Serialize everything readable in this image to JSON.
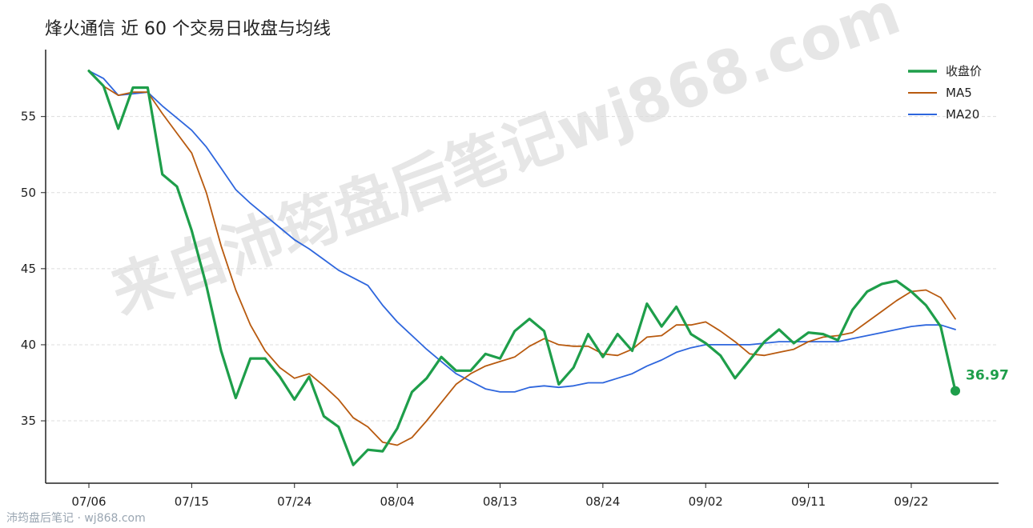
{
  "watermark_text": "来自沛筠盘后笔记wj868.com",
  "footer_text": "沛筠盘后笔记 · wj868.com",
  "end_value_label": "36.97",
  "colors": {
    "close": "#1e9e4a",
    "ma5": "#b85a0f",
    "ma20": "#2e66dd",
    "grid": "#dddddd",
    "axis": "#222222"
  },
  "chart_data": {
    "type": "line",
    "title": "烽火通信 近 60 个交易日收盘与均线",
    "xlabel": "",
    "ylabel": "",
    "ylim": [
      30.9,
      59.4
    ],
    "y_ticks": [
      35,
      40,
      45,
      50,
      55
    ],
    "x_tick_labels": [
      {
        "index": 0,
        "label": "07/06"
      },
      {
        "index": 7,
        "label": "07/15"
      },
      {
        "index": 14,
        "label": "07/24"
      },
      {
        "index": 21,
        "label": "08/04"
      },
      {
        "index": 28,
        "label": "08/13"
      },
      {
        "index": 35,
        "label": "08/24"
      },
      {
        "index": 42,
        "label": "09/02"
      },
      {
        "index": 49,
        "label": "09/11"
      },
      {
        "index": 56,
        "label": "09/22"
      }
    ],
    "legend_position": "top-right",
    "grid": "horizontal dashed",
    "series": [
      {
        "name": "收盘价",
        "color": "#1e9e4a",
        "width": 3.2,
        "values": [
          58.0,
          57.0,
          54.2,
          56.9,
          56.9,
          51.2,
          50.4,
          47.5,
          43.9,
          39.6,
          36.5,
          39.1,
          39.1,
          37.9,
          36.4,
          37.9,
          35.3,
          34.6,
          32.1,
          33.1,
          33.0,
          34.5,
          36.9,
          37.8,
          39.2,
          38.3,
          38.3,
          39.4,
          39.1,
          40.9,
          41.7,
          40.9,
          37.4,
          38.5,
          40.7,
          39.2,
          40.7,
          39.6,
          42.7,
          41.2,
          42.5,
          40.7,
          40.1,
          39.3,
          37.8,
          39.0,
          40.2,
          41.0,
          40.1,
          40.8,
          40.7,
          40.3,
          42.3,
          43.5,
          44.0,
          44.2,
          43.5,
          42.6,
          41.2,
          36.97
        ]
      },
      {
        "name": "MA5",
        "color": "#b85a0f",
        "width": 1.8,
        "values": [
          58.0,
          57.0,
          56.4,
          56.6,
          56.6,
          55.2,
          53.9,
          52.6,
          50.0,
          46.5,
          43.6,
          41.3,
          39.6,
          38.5,
          37.8,
          38.1,
          37.3,
          36.4,
          35.2,
          34.6,
          33.6,
          33.4,
          33.9,
          35.0,
          36.2,
          37.4,
          38.1,
          38.6,
          38.9,
          39.2,
          39.9,
          40.4,
          40.0,
          39.9,
          39.9,
          39.4,
          39.3,
          39.7,
          40.5,
          40.6,
          41.3,
          41.3,
          41.5,
          40.9,
          40.2,
          39.4,
          39.3,
          39.5,
          39.7,
          40.2,
          40.5,
          40.6,
          40.8,
          41.5,
          42.2,
          42.9,
          43.5,
          43.6,
          43.1,
          41.7
        ]
      },
      {
        "name": "MA20",
        "color": "#2e66dd",
        "width": 1.8,
        "values": [
          58.0,
          57.5,
          56.4,
          56.5,
          56.6,
          55.7,
          54.9,
          54.1,
          53.0,
          51.6,
          50.2,
          49.3,
          48.5,
          47.7,
          46.9,
          46.3,
          45.6,
          44.9,
          44.4,
          43.9,
          42.6,
          41.5,
          40.6,
          39.7,
          38.9,
          38.1,
          37.6,
          37.1,
          36.9,
          36.9,
          37.2,
          37.3,
          37.2,
          37.3,
          37.5,
          37.5,
          37.8,
          38.1,
          38.6,
          39.0,
          39.5,
          39.8,
          40.0,
          40.0,
          40.0,
          40.0,
          40.1,
          40.2,
          40.2,
          40.2,
          40.2,
          40.2,
          40.4,
          40.6,
          40.8,
          41.0,
          41.2,
          41.3,
          41.3,
          41.0
        ]
      }
    ]
  }
}
